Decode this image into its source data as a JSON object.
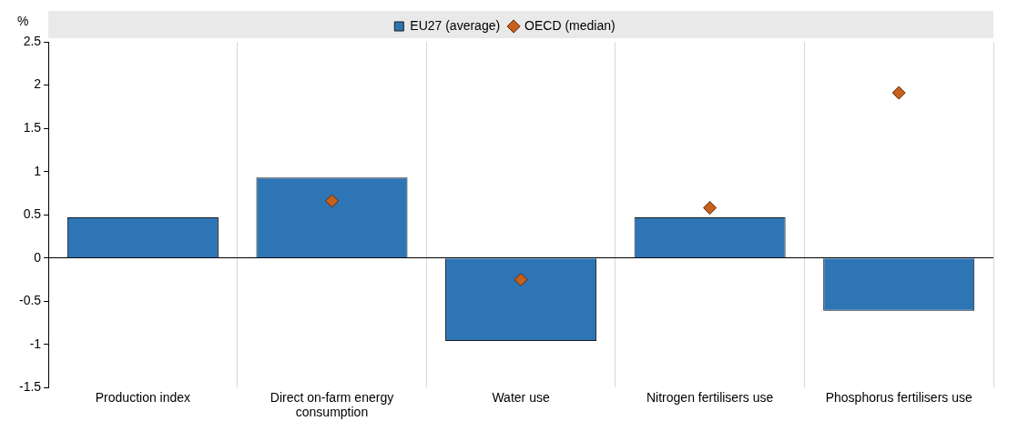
{
  "chart_data": {
    "type": "bar",
    "ylabel": "%",
    "categories": [
      "Production index",
      "Direct on-farm energy consumption",
      "Water use",
      "Nitrogen fertilisers use",
      "Phosphorus fertilisers use"
    ],
    "series": [
      {
        "name": "EU27 (average)",
        "color": "#2e75b6",
        "values": [
          0.47,
          0.93,
          -0.96,
          0.47,
          -0.61
        ]
      },
      {
        "name": "OECD (median)",
        "type": "scatter",
        "marker": "diamond",
        "color": "#c8601c",
        "values": [
          null,
          0.66,
          -0.25,
          0.58,
          1.91
        ]
      }
    ],
    "ylim": [
      -1.5,
      2.5
    ],
    "yticks": [
      -1.5,
      -1,
      -0.5,
      0,
      0.5,
      1,
      1.5,
      2,
      2.5
    ],
    "grid": "x",
    "legend": "top"
  }
}
